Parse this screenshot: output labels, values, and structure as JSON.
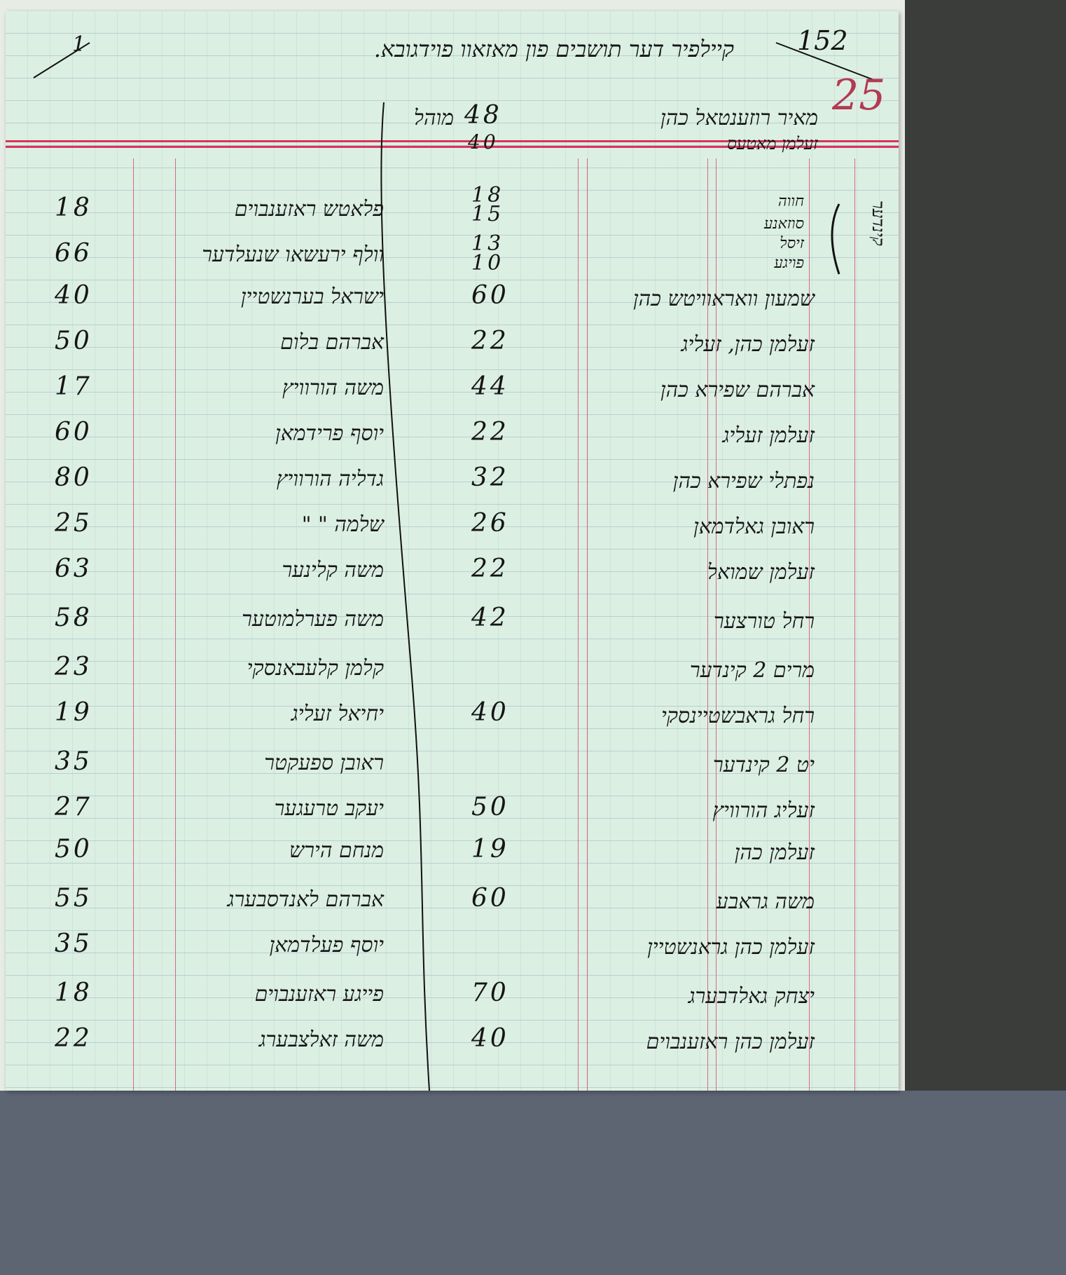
{
  "header": {
    "title": "קיילפיר דער תושבים פון מאזאוו פוידגובא.",
    "page_mark_left": "1",
    "folio": "152",
    "folio_red": "25"
  },
  "top_rows": [
    {
      "name": "מאיר רוזענטאל כהן",
      "number": "48",
      "note": "מוהל"
    },
    {
      "name": "זעלמן מאטעס",
      "number": "40"
    }
  ],
  "children": {
    "label": "קינדער",
    "names": [
      "חווה",
      "סוזאנע",
      "זיסל",
      "פויגע"
    ],
    "ages": [
      "18",
      "15",
      "13",
      "10"
    ]
  },
  "rows": [
    {
      "left_num": "18",
      "left_name": "פלאטש ראזענבוים",
      "mid_num": "",
      "right_name": ""
    },
    {
      "left_num": "66",
      "left_name": "וולף ירעשאו שנעלדער",
      "mid_num": "",
      "right_name": ""
    },
    {
      "left_num": "40",
      "left_name": "ישראל בערנשטיין",
      "mid_num": "60",
      "right_name": "שמעון וואראוויטש כהן"
    },
    {
      "left_num": "50",
      "left_name": "אברהם בלום",
      "mid_num": "22",
      "right_name": "זעלמן כהן, זעליג"
    },
    {
      "left_num": "17",
      "left_name": "משה הורוויץ",
      "mid_num": "44",
      "right_name": "אברהם שפירא כהן"
    },
    {
      "left_num": "60",
      "left_name": "יוסף פרידמאן",
      "mid_num": "22",
      "right_name": "זעלמן זעליג"
    },
    {
      "left_num": "80",
      "left_name": "גדליה הורוויץ",
      "mid_num": "32",
      "right_name": "נפתלי שפירא כהן"
    },
    {
      "left_num": "25",
      "left_name": "שלמה \" \"",
      "mid_num": "26",
      "right_name": "ראובן גאלדמאן"
    },
    {
      "left_num": "63",
      "left_name": "משה קלינער",
      "mid_num": "22",
      "right_name": "זעלמן שמואל"
    },
    {
      "left_num": "58",
      "left_name": "משה פערלמוטער",
      "mid_num": "42",
      "right_name": "רחל טורצער"
    },
    {
      "left_num": "23",
      "left_name": "קלמן קלעבאנסקי",
      "mid_num": "",
      "right_name": "מרים 2 קינדער"
    },
    {
      "left_num": "19",
      "left_name": "יחיאל זעליג",
      "mid_num": "40",
      "right_name": "רחל גראבשטיינסקי"
    },
    {
      "left_num": "35",
      "left_name": "ראובן ספעקטר",
      "mid_num": "",
      "right_name": "יט 2 קינדער"
    },
    {
      "left_num": "27",
      "left_name": "יעקב טרעגער",
      "mid_num": "50",
      "right_name": "זעליג הורוויץ"
    },
    {
      "left_num": "50",
      "left_name": "מנחם הירש",
      "mid_num": "19",
      "right_name": "זעלמן כהן"
    },
    {
      "left_num": "55",
      "left_name": "אברהם לאנדסבערג",
      "mid_num": "60",
      "right_name": "משה גראבע"
    },
    {
      "left_num": "35",
      "left_name": "יוסף פעלדמאן",
      "mid_num": "",
      "right_name": "זעלמן כהן גראנשטיין"
    },
    {
      "left_num": "18",
      "left_name": "פייגע ראזענבוים",
      "mid_num": "70",
      "right_name": "יצחק גאלדבערג"
    },
    {
      "left_num": "22",
      "left_name": "משה זאלצבערג",
      "mid_num": "40",
      "right_name": "זעלמן כהן ראזענבוים"
    }
  ]
}
